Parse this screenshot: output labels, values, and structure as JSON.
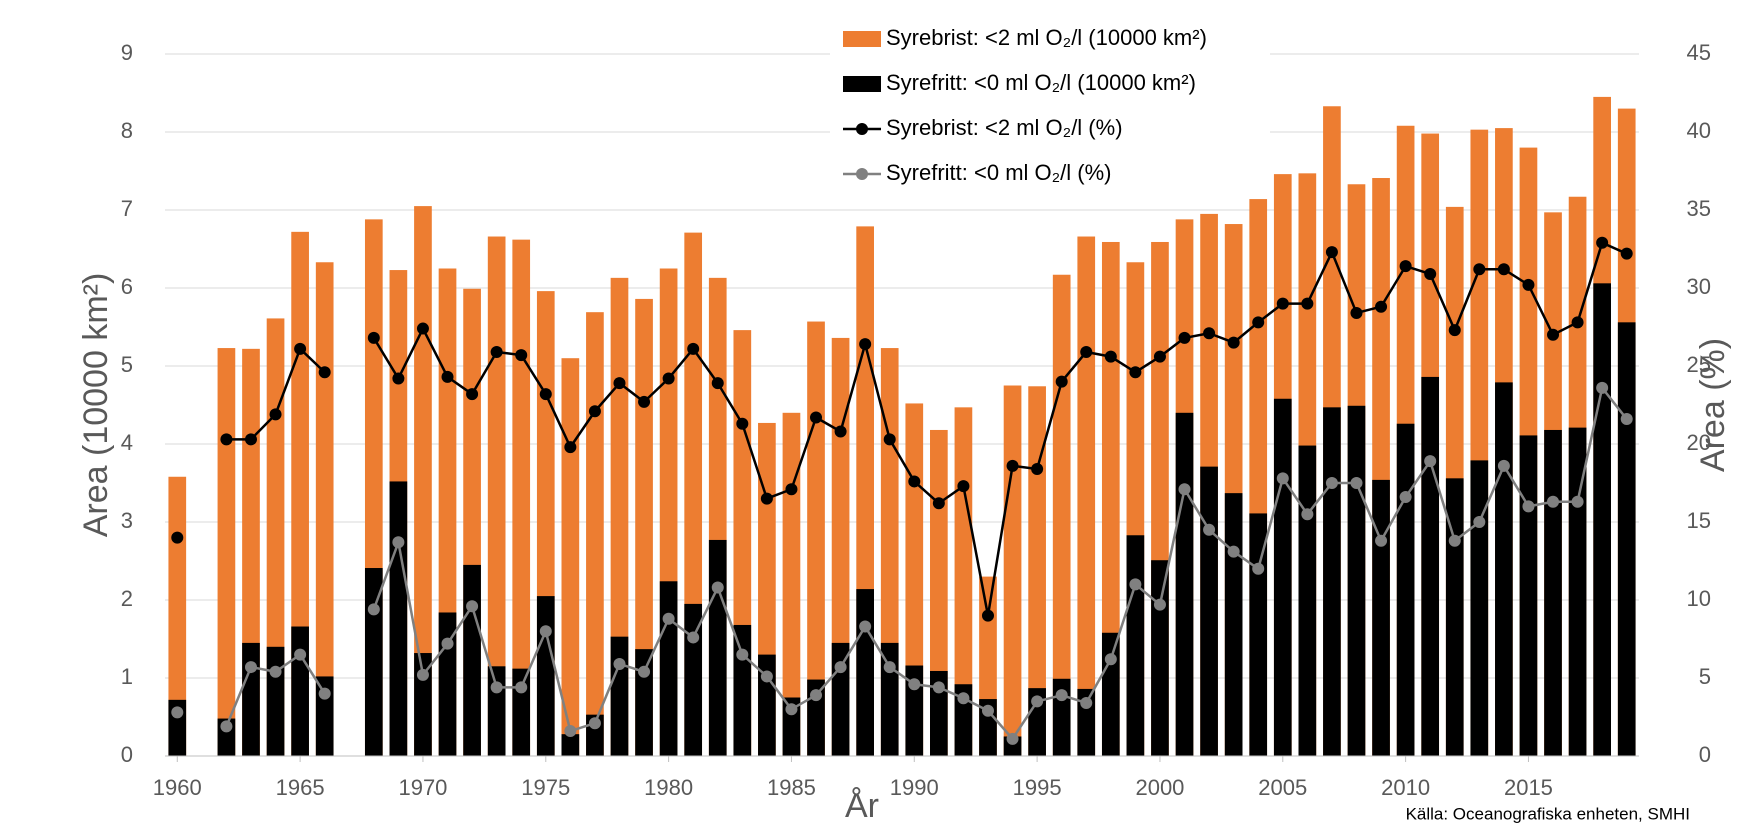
{
  "chart_data": {
    "type": "bar",
    "x": [
      1960,
      1961,
      1962,
      1963,
      1964,
      1965,
      1966,
      1967,
      1968,
      1969,
      1970,
      1971,
      1972,
      1973,
      1974,
      1975,
      1976,
      1977,
      1978,
      1979,
      1980,
      1981,
      1982,
      1983,
      1984,
      1985,
      1986,
      1987,
      1988,
      1989,
      1990,
      1991,
      1992,
      1993,
      1994,
      1995,
      1996,
      1997,
      1998,
      1999,
      2000,
      2001,
      2002,
      2003,
      2004,
      2005,
      2006,
      2007,
      2008,
      2009,
      2010,
      2011,
      2012,
      2013,
      2014,
      2015,
      2016,
      2017,
      2018,
      2019
    ],
    "xlim": [
      1959.5,
      2019.5
    ],
    "xticks": [
      1960,
      1965,
      1970,
      1975,
      1980,
      1985,
      1990,
      1995,
      2000,
      2005,
      2010,
      2015
    ],
    "ylim": [
      0,
      9
    ],
    "yticks": [
      0,
      1,
      2,
      3,
      4,
      5,
      6,
      7,
      8,
      9
    ],
    "y2lim": [
      0,
      45
    ],
    "y2ticks": [
      0,
      5,
      10,
      15,
      20,
      25,
      30,
      35,
      40,
      45
    ],
    "grid": true,
    "x_label": "År",
    "y_label": "Area (10000 km²)",
    "y2_label": "Area (%)",
    "source": "Källa: Oceanografiska enheten, SMHI",
    "series": [
      {
        "name": "Syrebrist: <2 ml O₂/l (10000 km²)",
        "type": "bar",
        "axis": "y",
        "color": "#ed7d31",
        "values": [
          3.58,
          null,
          5.23,
          5.22,
          5.61,
          6.72,
          6.33,
          null,
          6.88,
          6.23,
          7.05,
          6.25,
          5.99,
          6.66,
          6.62,
          5.96,
          5.1,
          5.69,
          6.13,
          5.86,
          6.25,
          6.71,
          6.13,
          5.46,
          4.27,
          4.4,
          5.57,
          5.36,
          6.79,
          5.23,
          4.52,
          4.18,
          4.47,
          2.3,
          4.75,
          4.74,
          6.17,
          6.66,
          6.59,
          6.33,
          6.59,
          6.88,
          6.95,
          6.82,
          7.14,
          7.46,
          7.47,
          8.33,
          7.33,
          7.41,
          8.08,
          7.98,
          7.04,
          8.03,
          8.05,
          7.8,
          6.97,
          7.17,
          8.45,
          8.3
        ]
      },
      {
        "name": "Syrefritt: <0 ml O₂/l (10000 km²)",
        "type": "bar",
        "axis": "y",
        "color": "#000000",
        "values": [
          0.72,
          null,
          0.48,
          1.45,
          1.4,
          1.66,
          1.02,
          null,
          2.41,
          3.52,
          1.32,
          1.84,
          2.45,
          1.15,
          1.12,
          2.05,
          0.28,
          0.53,
          1.53,
          1.37,
          2.24,
          1.95,
          2.77,
          1.68,
          1.3,
          0.75,
          0.98,
          1.45,
          2.14,
          1.45,
          1.16,
          1.09,
          0.92,
          0.73,
          0.25,
          0.87,
          0.99,
          0.86,
          1.58,
          2.83,
          2.51,
          4.4,
          3.71,
          3.37,
          3.11,
          4.58,
          3.98,
          4.47,
          4.49,
          3.54,
          4.26,
          4.86,
          3.56,
          3.79,
          4.79,
          4.11,
          4.18,
          4.21,
          6.06,
          5.56
        ]
      },
      {
        "name": "Syrebrist: <2 ml O₂/l (%)",
        "type": "line",
        "axis": "y2",
        "color": "#000000",
        "values": [
          14.0,
          null,
          20.3,
          20.3,
          21.9,
          26.1,
          24.6,
          null,
          26.8,
          24.2,
          27.4,
          24.3,
          23.2,
          25.9,
          25.7,
          23.2,
          19.8,
          22.1,
          23.9,
          22.7,
          24.2,
          26.1,
          23.9,
          21.3,
          16.5,
          17.1,
          21.7,
          20.8,
          26.4,
          20.3,
          17.6,
          16.2,
          17.3,
          9.0,
          18.6,
          18.4,
          24.0,
          25.9,
          25.6,
          24.6,
          25.6,
          26.8,
          27.1,
          26.5,
          27.8,
          29.0,
          29.0,
          32.3,
          28.4,
          28.8,
          31.4,
          30.9,
          27.3,
          31.2,
          31.2,
          30.2,
          27.0,
          27.8,
          32.9,
          32.2
        ]
      },
      {
        "name": "Syrefritt: <0 ml O₂/l (%)",
        "type": "line",
        "axis": "y2",
        "color": "#808080",
        "values": [
          2.8,
          null,
          1.9,
          5.7,
          5.4,
          6.5,
          4.0,
          null,
          9.4,
          13.7,
          5.2,
          7.2,
          9.6,
          4.4,
          4.4,
          8.0,
          1.6,
          2.1,
          5.9,
          5.4,
          8.8,
          7.6,
          10.8,
          6.5,
          5.1,
          3.0,
          3.9,
          5.7,
          8.3,
          5.7,
          4.6,
          4.4,
          3.7,
          2.9,
          1.1,
          3.5,
          3.9,
          3.4,
          6.2,
          11.0,
          9.7,
          17.1,
          14.5,
          13.1,
          12.0,
          17.8,
          15.5,
          17.5,
          17.5,
          13.8,
          16.6,
          18.9,
          13.8,
          15.0,
          18.6,
          16.0,
          16.3,
          16.3,
          23.6,
          21.6
        ]
      }
    ]
  }
}
